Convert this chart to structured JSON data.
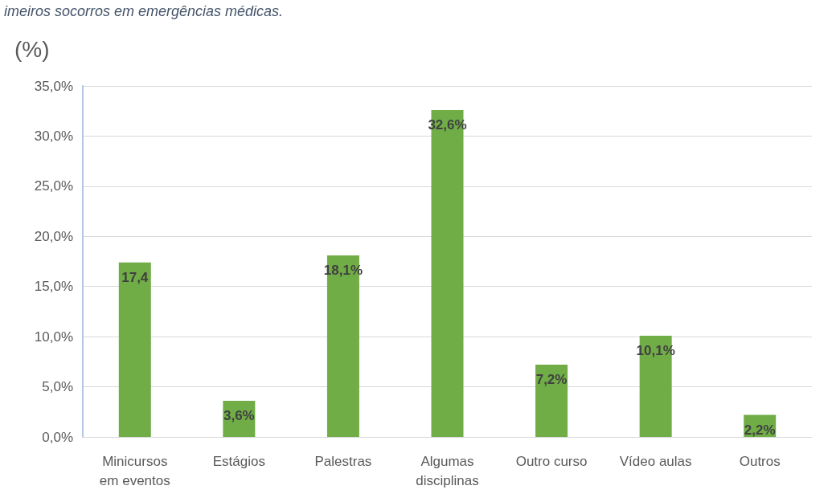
{
  "chart_data": {
    "type": "bar",
    "title": "imeiros socorros em emergências médicas.",
    "ylabel": "(%)",
    "categories": [
      "Minicursos\nem eventos",
      "Estágios",
      "Palestras",
      "Algumas\ndisciplinas",
      "Outro curso",
      "Vídeo aulas",
      "Outros"
    ],
    "values": [
      17.4,
      3.6,
      18.1,
      32.6,
      7.2,
      10.1,
      2.2
    ],
    "value_labels": [
      "17,4",
      "3,6%",
      "18,1%",
      "32,6%",
      "7,2%",
      "10,1%",
      "2,2%"
    ],
    "color": "#70ad47",
    "ylim": [
      0,
      35
    ],
    "yticks": [
      {
        "value": 0,
        "label": "0,0%"
      },
      {
        "value": 5,
        "label": "5,0%"
      },
      {
        "value": 10,
        "label": "10,0%"
      },
      {
        "value": 15,
        "label": "15,0%"
      },
      {
        "value": 20,
        "label": "20,0%"
      },
      {
        "value": 25,
        "label": "25,0%"
      },
      {
        "value": 30,
        "label": "30,0%"
      },
      {
        "value": 35,
        "label": "35,0%"
      }
    ],
    "grid": "y"
  }
}
